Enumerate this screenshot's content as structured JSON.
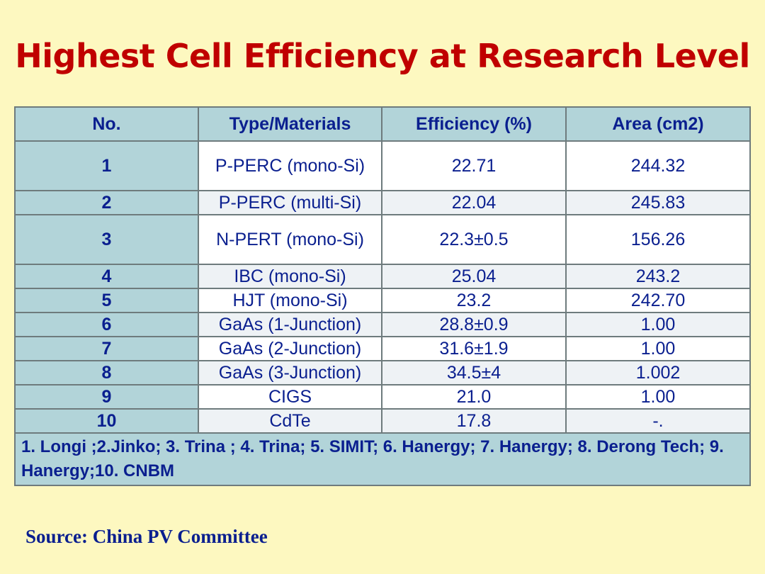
{
  "title": "Highest Cell Efficiency at Research Level",
  "table": {
    "headers": [
      "No.",
      "Type/Materials",
      "Efficiency (%)",
      "Area (cm2)"
    ],
    "rows": [
      {
        "no": "1",
        "type": "P-PERC (mono-Si)",
        "efficiency": "22.71",
        "area": "244.32"
      },
      {
        "no": "2",
        "type": "P-PERC (multi-Si)",
        "efficiency": "22.04",
        "area": "245.83"
      },
      {
        "no": "3",
        "type": "N-PERT (mono-Si)",
        "efficiency": "22.3±0.5",
        "area": "156.26"
      },
      {
        "no": "4",
        "type": "IBC (mono-Si)",
        "efficiency": "25.04",
        "area": "243.2"
      },
      {
        "no": "5",
        "type": "HJT (mono-Si)",
        "efficiency": "23.2",
        "area": "242.70"
      },
      {
        "no": "6",
        "type": "GaAs (1-Junction)",
        "efficiency": "28.8±0.9",
        "area": "1.00"
      },
      {
        "no": "7",
        "type": "GaAs (2-Junction)",
        "efficiency": "31.6±1.9",
        "area": "1.00"
      },
      {
        "no": "8",
        "type": "GaAs (3-Junction)",
        "efficiency": "34.5±4",
        "area": "1.002"
      },
      {
        "no": "9",
        "type": "CIGS",
        "efficiency": "21.0",
        "area": "1.00"
      },
      {
        "no": "10",
        "type": "CdTe",
        "efficiency": "17.8",
        "area": "-."
      }
    ],
    "note": "1. Longi ;2.Jinko; 3. Trina ; 4. Trina; 5. SIMIT;  6. Hanergy; 7. Hanergy; 8. Derong Tech; 9. Hanergy;10. CNBM"
  },
  "source": "Source: China PV Committee"
}
